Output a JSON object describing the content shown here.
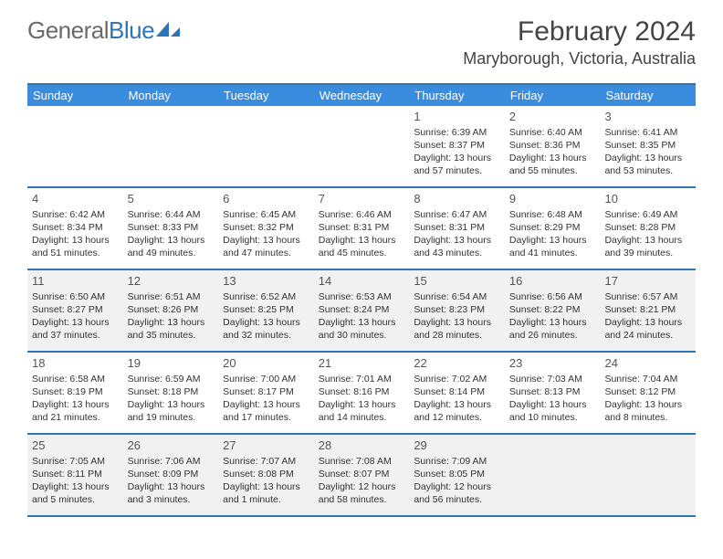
{
  "logo": {
    "text_gray": "General",
    "text_blue": "Blue"
  },
  "title": "February 2024",
  "location": "Maryborough, Victoria, Australia",
  "colors": {
    "header_bg": "#3a8dde",
    "header_rule": "#2e75b6",
    "shaded_bg": "#f1f1f1",
    "text": "#333333",
    "title_text": "#444444",
    "logo_gray": "#6a6a6a",
    "logo_blue": "#2e75b6"
  },
  "day_names": [
    "Sunday",
    "Monday",
    "Tuesday",
    "Wednesday",
    "Thursday",
    "Friday",
    "Saturday"
  ],
  "weeks": [
    [
      {
        "n": "",
        "sr": "",
        "ss": "",
        "dl": ""
      },
      {
        "n": "",
        "sr": "",
        "ss": "",
        "dl": ""
      },
      {
        "n": "",
        "sr": "",
        "ss": "",
        "dl": ""
      },
      {
        "n": "",
        "sr": "",
        "ss": "",
        "dl": ""
      },
      {
        "n": "1",
        "sr": "Sunrise: 6:39 AM",
        "ss": "Sunset: 8:37 PM",
        "dl": "Daylight: 13 hours and 57 minutes."
      },
      {
        "n": "2",
        "sr": "Sunrise: 6:40 AM",
        "ss": "Sunset: 8:36 PM",
        "dl": "Daylight: 13 hours and 55 minutes."
      },
      {
        "n": "3",
        "sr": "Sunrise: 6:41 AM",
        "ss": "Sunset: 8:35 PM",
        "dl": "Daylight: 13 hours and 53 minutes."
      }
    ],
    [
      {
        "n": "4",
        "sr": "Sunrise: 6:42 AM",
        "ss": "Sunset: 8:34 PM",
        "dl": "Daylight: 13 hours and 51 minutes."
      },
      {
        "n": "5",
        "sr": "Sunrise: 6:44 AM",
        "ss": "Sunset: 8:33 PM",
        "dl": "Daylight: 13 hours and 49 minutes."
      },
      {
        "n": "6",
        "sr": "Sunrise: 6:45 AM",
        "ss": "Sunset: 8:32 PM",
        "dl": "Daylight: 13 hours and 47 minutes."
      },
      {
        "n": "7",
        "sr": "Sunrise: 6:46 AM",
        "ss": "Sunset: 8:31 PM",
        "dl": "Daylight: 13 hours and 45 minutes."
      },
      {
        "n": "8",
        "sr": "Sunrise: 6:47 AM",
        "ss": "Sunset: 8:31 PM",
        "dl": "Daylight: 13 hours and 43 minutes."
      },
      {
        "n": "9",
        "sr": "Sunrise: 6:48 AM",
        "ss": "Sunset: 8:29 PM",
        "dl": "Daylight: 13 hours and 41 minutes."
      },
      {
        "n": "10",
        "sr": "Sunrise: 6:49 AM",
        "ss": "Sunset: 8:28 PM",
        "dl": "Daylight: 13 hours and 39 minutes."
      }
    ],
    [
      {
        "n": "11",
        "sr": "Sunrise: 6:50 AM",
        "ss": "Sunset: 8:27 PM",
        "dl": "Daylight: 13 hours and 37 minutes."
      },
      {
        "n": "12",
        "sr": "Sunrise: 6:51 AM",
        "ss": "Sunset: 8:26 PM",
        "dl": "Daylight: 13 hours and 35 minutes."
      },
      {
        "n": "13",
        "sr": "Sunrise: 6:52 AM",
        "ss": "Sunset: 8:25 PM",
        "dl": "Daylight: 13 hours and 32 minutes."
      },
      {
        "n": "14",
        "sr": "Sunrise: 6:53 AM",
        "ss": "Sunset: 8:24 PM",
        "dl": "Daylight: 13 hours and 30 minutes."
      },
      {
        "n": "15",
        "sr": "Sunrise: 6:54 AM",
        "ss": "Sunset: 8:23 PM",
        "dl": "Daylight: 13 hours and 28 minutes."
      },
      {
        "n": "16",
        "sr": "Sunrise: 6:56 AM",
        "ss": "Sunset: 8:22 PM",
        "dl": "Daylight: 13 hours and 26 minutes."
      },
      {
        "n": "17",
        "sr": "Sunrise: 6:57 AM",
        "ss": "Sunset: 8:21 PM",
        "dl": "Daylight: 13 hours and 24 minutes."
      }
    ],
    [
      {
        "n": "18",
        "sr": "Sunrise: 6:58 AM",
        "ss": "Sunset: 8:19 PM",
        "dl": "Daylight: 13 hours and 21 minutes."
      },
      {
        "n": "19",
        "sr": "Sunrise: 6:59 AM",
        "ss": "Sunset: 8:18 PM",
        "dl": "Daylight: 13 hours and 19 minutes."
      },
      {
        "n": "20",
        "sr": "Sunrise: 7:00 AM",
        "ss": "Sunset: 8:17 PM",
        "dl": "Daylight: 13 hours and 17 minutes."
      },
      {
        "n": "21",
        "sr": "Sunrise: 7:01 AM",
        "ss": "Sunset: 8:16 PM",
        "dl": "Daylight: 13 hours and 14 minutes."
      },
      {
        "n": "22",
        "sr": "Sunrise: 7:02 AM",
        "ss": "Sunset: 8:14 PM",
        "dl": "Daylight: 13 hours and 12 minutes."
      },
      {
        "n": "23",
        "sr": "Sunrise: 7:03 AM",
        "ss": "Sunset: 8:13 PM",
        "dl": "Daylight: 13 hours and 10 minutes."
      },
      {
        "n": "24",
        "sr": "Sunrise: 7:04 AM",
        "ss": "Sunset: 8:12 PM",
        "dl": "Daylight: 13 hours and 8 minutes."
      }
    ],
    [
      {
        "n": "25",
        "sr": "Sunrise: 7:05 AM",
        "ss": "Sunset: 8:11 PM",
        "dl": "Daylight: 13 hours and 5 minutes."
      },
      {
        "n": "26",
        "sr": "Sunrise: 7:06 AM",
        "ss": "Sunset: 8:09 PM",
        "dl": "Daylight: 13 hours and 3 minutes."
      },
      {
        "n": "27",
        "sr": "Sunrise: 7:07 AM",
        "ss": "Sunset: 8:08 PM",
        "dl": "Daylight: 13 hours and 1 minute."
      },
      {
        "n": "28",
        "sr": "Sunrise: 7:08 AM",
        "ss": "Sunset: 8:07 PM",
        "dl": "Daylight: 12 hours and 58 minutes."
      },
      {
        "n": "29",
        "sr": "Sunrise: 7:09 AM",
        "ss": "Sunset: 8:05 PM",
        "dl": "Daylight: 12 hours and 56 minutes."
      },
      {
        "n": "",
        "sr": "",
        "ss": "",
        "dl": ""
      },
      {
        "n": "",
        "sr": "",
        "ss": "",
        "dl": ""
      }
    ]
  ]
}
